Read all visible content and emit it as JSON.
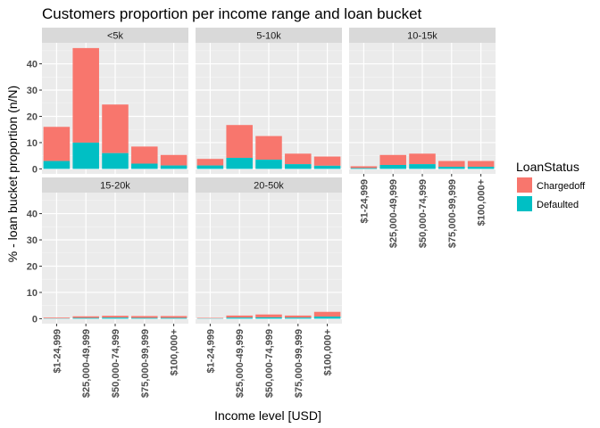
{
  "chart_data": {
    "type": "bar",
    "stacked": true,
    "title": "Customers proportion per income range and loan bucket",
    "xlabel": "Income level [USD]",
    "ylabel": "% - loan bucket proportion (n/N)",
    "ylim": [
      0,
      48
    ],
    "yticks": [
      0,
      10,
      20,
      30,
      40
    ],
    "categories": [
      "$1-24,999",
      "$25,000-49,999",
      "$50,000-74,999",
      "$75,000-99,999",
      "$100,000+"
    ],
    "legend": {
      "title": "LoanStatus",
      "position": "right",
      "entries": [
        "Chargedoff",
        "Defaulted"
      ]
    },
    "colors": {
      "Chargedoff": "#F8766D",
      "Defaulted": "#00BFC4"
    },
    "panels": [
      {
        "label": "<5k",
        "series": [
          {
            "name": "Chargedoff",
            "values": [
              13,
              36,
              18.5,
              6.5,
              4
            ]
          },
          {
            "name": "Defaulted",
            "values": [
              3,
              10,
              6,
              2,
              1.3
            ]
          }
        ]
      },
      {
        "label": "5-10k",
        "series": [
          {
            "name": "Chargedoff",
            "values": [
              2.5,
              12.5,
              9,
              4,
              3.5
            ]
          },
          {
            "name": "Defaulted",
            "values": [
              1.3,
              4.2,
              3.5,
              1.8,
              1.2
            ]
          }
        ]
      },
      {
        "label": "10-15k",
        "series": [
          {
            "name": "Chargedoff",
            "values": [
              0.7,
              3.8,
              4,
              2.2,
              2.2
            ]
          },
          {
            "name": "Defaulted",
            "values": [
              0.3,
              1.5,
              1.8,
              0.8,
              0.8
            ]
          }
        ]
      },
      {
        "label": "15-20k",
        "series": [
          {
            "name": "Chargedoff",
            "values": [
              0.3,
              0.6,
              0.7,
              0.7,
              0.7
            ]
          },
          {
            "name": "Defaulted",
            "values": [
              0.1,
              0.3,
              0.4,
              0.3,
              0.3
            ]
          }
        ]
      },
      {
        "label": "20-50k",
        "series": [
          {
            "name": "Chargedoff",
            "values": [
              0.2,
              0.8,
              1.1,
              0.8,
              1.8
            ]
          },
          {
            "name": "Defaulted",
            "values": [
              0.1,
              0.4,
              0.5,
              0.4,
              0.8
            ]
          }
        ]
      }
    ]
  }
}
